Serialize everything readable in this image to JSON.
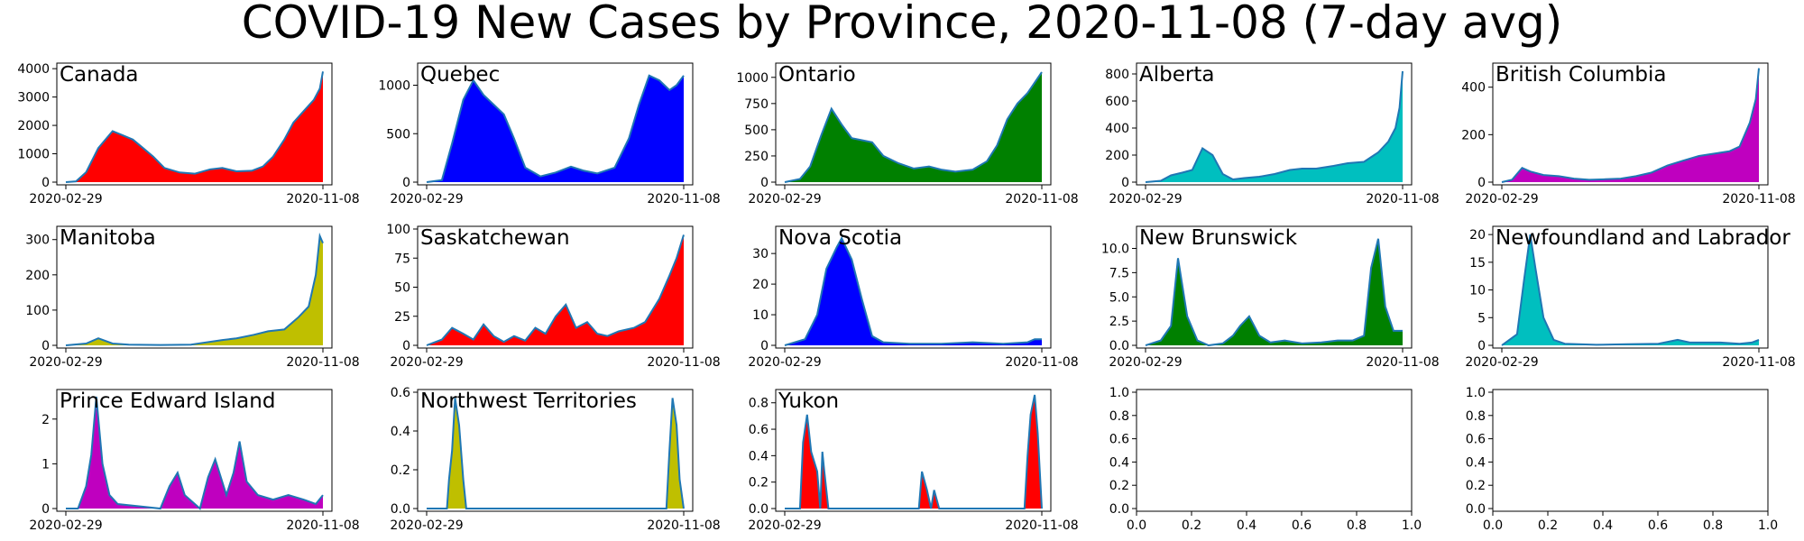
{
  "title": "COVID-19 New Cases by Province, 2020-11-08 (7-day avg)",
  "chart_data": [
    {
      "type": "area",
      "title": "Canada",
      "x_range": [
        "2020-02-29",
        "2020-11-08"
      ],
      "x_ticks": [
        "2020-02-29",
        "2020-11-08"
      ],
      "ylim": [
        0,
        4100
      ],
      "y_ticks": [
        0,
        1000,
        2000,
        3000,
        4000
      ],
      "fill_color": "#ff0000",
      "line_color": "#1f77b4",
      "series": [
        {
          "x": [
            "2020-02-29",
            "2020-03-10",
            "2020-03-20",
            "2020-04-01",
            "2020-04-15",
            "2020-04-25",
            "2020-05-05",
            "2020-05-15",
            "2020-05-25",
            "2020-06-05",
            "2020-06-20",
            "2020-07-05",
            "2020-07-20",
            "2020-08-01",
            "2020-08-15",
            "2020-08-30",
            "2020-09-10",
            "2020-09-20",
            "2020-10-01",
            "2020-10-10",
            "2020-10-20",
            "2020-10-30",
            "2020-11-05",
            "2020-11-08"
          ],
          "y": [
            0,
            30,
            350,
            1200,
            1800,
            1650,
            1500,
            1200,
            900,
            500,
            340,
            300,
            450,
            500,
            380,
            400,
            550,
            900,
            1500,
            2100,
            2500,
            2900,
            3300,
            3900
          ]
        }
      ]
    },
    {
      "type": "area",
      "title": "Quebec",
      "x_range": [
        "2020-02-29",
        "2020-11-08"
      ],
      "x_ticks": [
        "2020-02-29",
        "2020-11-08"
      ],
      "ylim": [
        0,
        1200
      ],
      "y_ticks": [
        0,
        500,
        1000
      ],
      "fill_color": "#0000ff",
      "line_color": "#1f77b4",
      "series": [
        {
          "x": [
            "2020-02-29",
            "2020-03-15",
            "2020-03-25",
            "2020-04-05",
            "2020-04-15",
            "2020-04-25",
            "2020-05-05",
            "2020-05-15",
            "2020-05-25",
            "2020-06-05",
            "2020-06-20",
            "2020-07-05",
            "2020-07-20",
            "2020-08-01",
            "2020-08-15",
            "2020-09-01",
            "2020-09-15",
            "2020-09-25",
            "2020-10-05",
            "2020-10-15",
            "2020-10-25",
            "2020-11-01",
            "2020-11-08"
          ],
          "y": [
            0,
            20,
            400,
            850,
            1050,
            900,
            800,
            700,
            450,
            150,
            60,
            100,
            160,
            120,
            90,
            150,
            450,
            800,
            1100,
            1050,
            950,
            1000,
            1100
          ]
        }
      ]
    },
    {
      "type": "area",
      "title": "Ontario",
      "x_range": [
        "2020-02-29",
        "2020-11-08"
      ],
      "x_ticks": [
        "2020-02-29",
        "2020-11-08"
      ],
      "ylim": [
        0,
        1110
      ],
      "y_ticks": [
        0,
        250,
        500,
        750,
        1000
      ],
      "fill_color": "#008000",
      "line_color": "#1f77b4",
      "series": [
        {
          "x": [
            "2020-02-29",
            "2020-03-15",
            "2020-03-25",
            "2020-04-05",
            "2020-04-15",
            "2020-04-25",
            "2020-05-05",
            "2020-05-15",
            "2020-05-25",
            "2020-06-05",
            "2020-06-20",
            "2020-07-05",
            "2020-07-20",
            "2020-08-01",
            "2020-08-15",
            "2020-09-01",
            "2020-09-15",
            "2020-09-25",
            "2020-10-05",
            "2020-10-15",
            "2020-10-25",
            "2020-11-01",
            "2020-11-08"
          ],
          "y": [
            0,
            30,
            150,
            450,
            700,
            550,
            420,
            400,
            380,
            250,
            180,
            130,
            150,
            120,
            100,
            120,
            200,
            350,
            600,
            750,
            850,
            950,
            1050
          ]
        }
      ]
    },
    {
      "type": "area",
      "title": "Alberta",
      "x_range": [
        "2020-02-29",
        "2020-11-08"
      ],
      "x_ticks": [
        "2020-02-29",
        "2020-11-08"
      ],
      "ylim": [
        0,
        860
      ],
      "y_ticks": [
        0,
        200,
        400,
        600,
        800
      ],
      "fill_color": "#00bfbf",
      "line_color": "#1f77b4",
      "series": [
        {
          "x": [
            "2020-02-29",
            "2020-03-15",
            "2020-03-25",
            "2020-04-05",
            "2020-04-15",
            "2020-04-25",
            "2020-05-05",
            "2020-05-15",
            "2020-05-25",
            "2020-06-05",
            "2020-06-20",
            "2020-07-05",
            "2020-07-20",
            "2020-08-01",
            "2020-08-15",
            "2020-09-01",
            "2020-09-15",
            "2020-10-01",
            "2020-10-15",
            "2020-10-25",
            "2020-11-01",
            "2020-11-05",
            "2020-11-08"
          ],
          "y": [
            0,
            10,
            50,
            70,
            90,
            250,
            200,
            60,
            20,
            30,
            40,
            60,
            90,
            100,
            100,
            120,
            140,
            150,
            220,
            300,
            400,
            550,
            820
          ]
        }
      ]
    },
    {
      "type": "area",
      "title": "British Columbia",
      "x_range": [
        "2020-02-29",
        "2020-11-08"
      ],
      "x_ticks": [
        "2020-02-29",
        "2020-11-08"
      ],
      "ylim": [
        0,
        490
      ],
      "y_ticks": [
        0,
        200,
        400
      ],
      "fill_color": "#bf00bf",
      "line_color": "#1f77b4",
      "series": [
        {
          "x": [
            "2020-02-29",
            "2020-03-10",
            "2020-03-20",
            "2020-03-28",
            "2020-04-10",
            "2020-04-25",
            "2020-05-10",
            "2020-05-25",
            "2020-06-10",
            "2020-06-25",
            "2020-07-10",
            "2020-07-25",
            "2020-08-10",
            "2020-08-25",
            "2020-09-10",
            "2020-09-25",
            "2020-10-10",
            "2020-10-20",
            "2020-10-30",
            "2020-11-05",
            "2020-11-08"
          ],
          "y": [
            0,
            10,
            60,
            45,
            30,
            25,
            15,
            10,
            12,
            15,
            25,
            40,
            70,
            90,
            110,
            120,
            130,
            150,
            250,
            350,
            480
          ]
        }
      ]
    },
    {
      "type": "area",
      "title": "Manitoba",
      "x_range": [
        "2020-02-29",
        "2020-11-08"
      ],
      "x_ticks": [
        "2020-02-29",
        "2020-11-08"
      ],
      "ylim": [
        0,
        330
      ],
      "y_ticks": [
        0,
        100,
        200,
        300
      ],
      "fill_color": "#bfbf00",
      "line_color": "#1f77b4",
      "series": [
        {
          "x": [
            "2020-02-29",
            "2020-03-20",
            "2020-04-01",
            "2020-04-15",
            "2020-05-01",
            "2020-06-01",
            "2020-07-01",
            "2020-08-01",
            "2020-08-15",
            "2020-09-01",
            "2020-09-15",
            "2020-10-01",
            "2020-10-15",
            "2020-10-25",
            "2020-11-01",
            "2020-11-05",
            "2020-11-08"
          ],
          "y": [
            0,
            5,
            20,
            5,
            2,
            1,
            2,
            15,
            20,
            30,
            40,
            45,
            80,
            110,
            200,
            310,
            290
          ]
        }
      ]
    },
    {
      "type": "area",
      "title": "Saskatchewan",
      "x_range": [
        "2020-02-29",
        "2020-11-08"
      ],
      "x_ticks": [
        "2020-02-29",
        "2020-11-08"
      ],
      "ylim": [
        0,
        100
      ],
      "y_ticks": [
        0,
        25,
        50,
        75,
        100
      ],
      "fill_color": "#ff0000",
      "line_color": "#1f77b4",
      "series": [
        {
          "x": [
            "2020-02-29",
            "2020-03-15",
            "2020-03-25",
            "2020-04-05",
            "2020-04-15",
            "2020-04-25",
            "2020-05-05",
            "2020-05-15",
            "2020-05-25",
            "2020-06-05",
            "2020-06-15",
            "2020-06-25",
            "2020-07-05",
            "2020-07-15",
            "2020-07-25",
            "2020-08-05",
            "2020-08-15",
            "2020-08-25",
            "2020-09-05",
            "2020-09-20",
            "2020-10-01",
            "2020-10-15",
            "2020-10-25",
            "2020-11-01",
            "2020-11-08"
          ],
          "y": [
            0,
            5,
            15,
            10,
            5,
            18,
            8,
            3,
            8,
            4,
            15,
            10,
            25,
            35,
            15,
            20,
            10,
            8,
            12,
            15,
            20,
            40,
            60,
            75,
            95
          ]
        }
      ]
    },
    {
      "type": "area",
      "title": "Nova Scotia",
      "x_range": [
        "2020-02-29",
        "2020-11-08"
      ],
      "x_ticks": [
        "2020-02-29",
        "2020-11-08"
      ],
      "ylim": [
        0,
        38
      ],
      "y_ticks": [
        0,
        10,
        20,
        30
      ],
      "fill_color": "#0000ff",
      "line_color": "#1f77b4",
      "series": [
        {
          "x": [
            "2020-02-29",
            "2020-03-20",
            "2020-04-01",
            "2020-04-10",
            "2020-04-20",
            "2020-04-25",
            "2020-05-05",
            "2020-05-15",
            "2020-05-25",
            "2020-06-05",
            "2020-07-01",
            "2020-08-01",
            "2020-09-01",
            "2020-10-01",
            "2020-10-25",
            "2020-11-01",
            "2020-11-08"
          ],
          "y": [
            0,
            2,
            10,
            25,
            32,
            35,
            28,
            15,
            3,
            1,
            0.5,
            0.5,
            1,
            0.5,
            1,
            2,
            2
          ]
        }
      ]
    },
    {
      "type": "area",
      "title": "New Brunswick",
      "x_range": [
        "2020-02-29",
        "2020-11-08"
      ],
      "x_ticks": [
        "2020-02-29",
        "2020-11-08"
      ],
      "ylim": [
        0,
        12
      ],
      "y_ticks": [
        0,
        2.5,
        5.0,
        7.5,
        10.0
      ],
      "fill_color": "#008000",
      "line_color": "#1f77b4",
      "series": [
        {
          "x": [
            "2020-02-29",
            "2020-03-15",
            "2020-03-25",
            "2020-04-01",
            "2020-04-10",
            "2020-04-20",
            "2020-05-01",
            "2020-05-15",
            "2020-05-25",
            "2020-06-01",
            "2020-06-10",
            "2020-06-20",
            "2020-07-01",
            "2020-07-15",
            "2020-08-01",
            "2020-08-20",
            "2020-09-05",
            "2020-09-20",
            "2020-10-01",
            "2020-10-08",
            "2020-10-15",
            "2020-10-22",
            "2020-10-30",
            "2020-11-08"
          ],
          "y": [
            0,
            0.5,
            2,
            9,
            3,
            0.5,
            0,
            0.2,
            1,
            2,
            3,
            1,
            0.3,
            0.5,
            0.2,
            0.3,
            0.5,
            0.5,
            1,
            8,
            11,
            4,
            1.5,
            1.5
          ]
        }
      ]
    },
    {
      "type": "area",
      "title": "Newfoundland and Labrador",
      "x_range": [
        "2020-02-29",
        "2020-11-08"
      ],
      "x_ticks": [
        "2020-02-29",
        "2020-11-08"
      ],
      "ylim": [
        0,
        21
      ],
      "y_ticks": [
        0,
        5,
        10,
        15,
        20
      ],
      "fill_color": "#00bfbf",
      "line_color": "#1f77b4",
      "series": [
        {
          "x": [
            "2020-02-29",
            "2020-03-15",
            "2020-03-22",
            "2020-03-28",
            "2020-04-02",
            "2020-04-10",
            "2020-04-20",
            "2020-05-01",
            "2020-06-01",
            "2020-07-01",
            "2020-08-01",
            "2020-08-20",
            "2020-09-01",
            "2020-10-01",
            "2020-10-20",
            "2020-11-01",
            "2020-11-08"
          ],
          "y": [
            0,
            2,
            12,
            20,
            14,
            5,
            1,
            0.3,
            0.1,
            0.2,
            0.3,
            1,
            0.5,
            0.5,
            0.3,
            0.5,
            1
          ]
        }
      ]
    },
    {
      "type": "area",
      "title": "Prince Edward Island",
      "x_range": [
        "2020-02-29",
        "2020-11-08"
      ],
      "x_ticks": [
        "2020-02-29",
        "2020-11-08"
      ],
      "ylim": [
        0,
        2.6
      ],
      "y_ticks": [
        0,
        1,
        2
      ],
      "fill_color": "#bf00bf",
      "line_color": "#1f77b4",
      "series": [
        {
          "x": [
            "2020-02-29",
            "2020-03-12",
            "2020-03-20",
            "2020-03-25",
            "2020-03-30",
            "2020-04-05",
            "2020-04-12",
            "2020-04-20",
            "2020-06-01",
            "2020-06-10",
            "2020-06-18",
            "2020-06-25",
            "2020-07-10",
            "2020-07-18",
            "2020-07-25",
            "2020-08-05",
            "2020-08-12",
            "2020-08-18",
            "2020-08-25",
            "2020-09-05",
            "2020-09-20",
            "2020-10-05",
            "2020-10-20",
            "2020-11-01",
            "2020-11-08"
          ],
          "y": [
            0,
            0,
            0.5,
            1.2,
            2.5,
            1.0,
            0.3,
            0.1,
            0,
            0.5,
            0.8,
            0.3,
            0,
            0.7,
            1.1,
            0.3,
            0.8,
            1.5,
            0.6,
            0.3,
            0.2,
            0.3,
            0.2,
            0.1,
            0.3
          ]
        }
      ]
    },
    {
      "type": "area",
      "title": "Northwest Territories",
      "x_range": [
        "2020-02-29",
        "2020-11-08"
      ],
      "x_ticks": [
        "2020-02-29",
        "2020-11-08"
      ],
      "ylim": [
        0,
        0.6
      ],
      "y_ticks": [
        0,
        0.2,
        0.4,
        0.6
      ],
      "fill_color": "#bfbf00",
      "line_color": "#1f77b4",
      "series": [
        {
          "x": [
            "2020-02-29",
            "2020-03-20",
            "2020-03-22",
            "2020-03-25",
            "2020-03-28",
            "2020-04-01",
            "2020-04-05",
            "2020-04-08",
            "2020-04-10",
            "2020-10-22",
            "2020-10-25",
            "2020-10-28",
            "2020-11-01",
            "2020-11-04",
            "2020-11-08"
          ],
          "y": [
            0,
            0,
            0.15,
            0.3,
            0.57,
            0.43,
            0.15,
            0,
            0,
            0,
            0.3,
            0.57,
            0.43,
            0.15,
            0
          ]
        }
      ]
    },
    {
      "type": "area",
      "title": "Yukon",
      "x_range": [
        "2020-02-29",
        "2020-11-08"
      ],
      "x_ticks": [
        "2020-02-29",
        "2020-11-08"
      ],
      "ylim": [
        0,
        0.88
      ],
      "y_ticks": [
        0,
        0.2,
        0.4,
        0.6,
        0.8
      ],
      "fill_color": "#ff0000",
      "line_color": "#1f77b4",
      "series": [
        {
          "x": [
            "2020-02-29",
            "2020-03-15",
            "2020-03-18",
            "2020-03-22",
            "2020-03-26",
            "2020-04-01",
            "2020-04-04",
            "2020-04-06",
            "2020-04-08",
            "2020-04-12",
            "2020-07-10",
            "2020-07-13",
            "2020-07-18",
            "2020-07-22",
            "2020-07-25",
            "2020-07-30",
            "2020-10-22",
            "2020-10-25",
            "2020-10-28",
            "2020-11-01",
            "2020-11-04",
            "2020-11-08"
          ],
          "y": [
            0,
            0,
            0.5,
            0.71,
            0.43,
            0.28,
            0,
            0.43,
            0.28,
            0,
            0,
            0.28,
            0.14,
            0,
            0.14,
            0,
            0,
            0.4,
            0.71,
            0.86,
            0.57,
            0
          ]
        }
      ]
    },
    {
      "type": "area",
      "title": "",
      "ylim": [
        0,
        1
      ],
      "xlim": [
        0,
        1
      ],
      "x_ticks": [
        0.0,
        0.2,
        0.4,
        0.6,
        0.8,
        1.0
      ],
      "y_ticks": [
        0.0,
        0.2,
        0.4,
        0.6,
        0.8,
        1.0
      ],
      "series": []
    },
    {
      "type": "area",
      "title": "",
      "ylim": [
        0,
        1
      ],
      "xlim": [
        0,
        1
      ],
      "x_ticks": [
        0.0,
        0.2,
        0.4,
        0.6,
        0.8,
        1.0
      ],
      "y_ticks": [
        0.0,
        0.2,
        0.4,
        0.6,
        0.8,
        1.0
      ],
      "series": []
    }
  ]
}
